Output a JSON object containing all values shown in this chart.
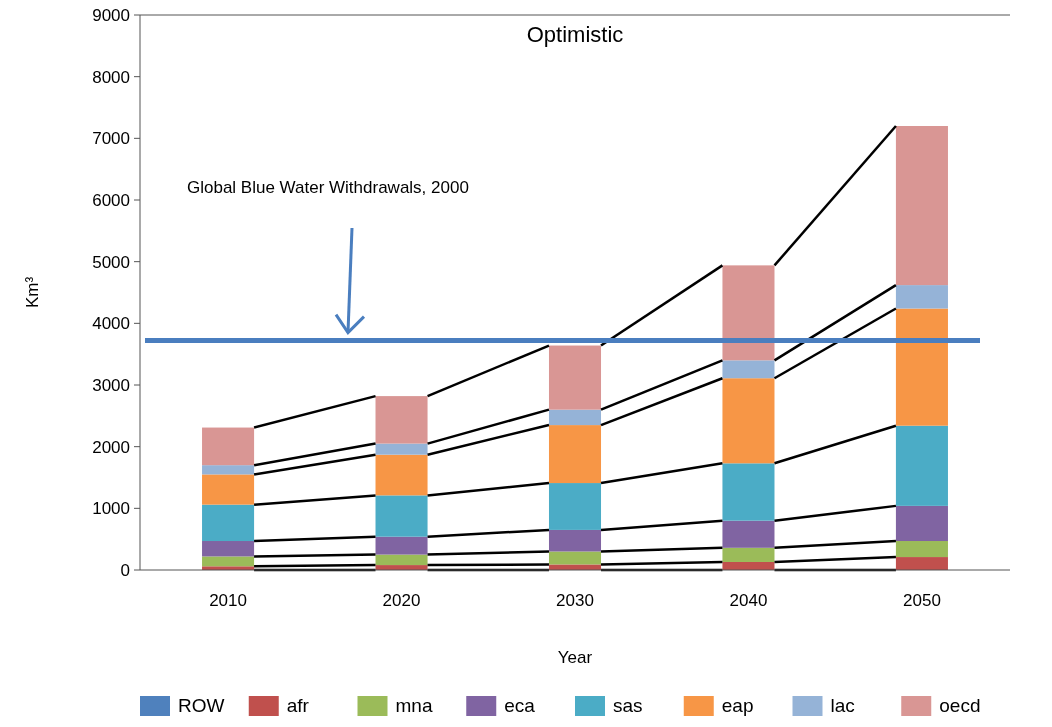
{
  "chart_data": {
    "type": "bar",
    "title": "Optimistic",
    "xlabel": "Year",
    "ylabel": "Km³",
    "categories": [
      "2010",
      "2020",
      "2030",
      "2040",
      "2050"
    ],
    "stacked": true,
    "ylim": [
      0,
      9000
    ],
    "yticks": [
      0,
      1000,
      2000,
      3000,
      4000,
      5000,
      6000,
      7000,
      8000,
      9000
    ],
    "grid": false,
    "legend": "bottom",
    "series": [
      {
        "name": "ROW",
        "color": "#4f81bd",
        "values": [
          null,
          null,
          null,
          null,
          null
        ]
      },
      {
        "name": "afr",
        "color": "#c0504d",
        "values": [
          60,
          80,
          90,
          130,
          210
        ]
      },
      {
        "name": "mna",
        "color": "#9bbb59",
        "values": [
          160,
          170,
          210,
          230,
          260
        ]
      },
      {
        "name": "eca",
        "color": "#8064a2",
        "values": [
          250,
          290,
          350,
          440,
          570
        ]
      },
      {
        "name": "sas",
        "color": "#4bacc6",
        "values": [
          590,
          670,
          760,
          930,
          1300
        ]
      },
      {
        "name": "eap",
        "color": "#f79646",
        "values": [
          490,
          660,
          940,
          1380,
          1900
        ]
      },
      {
        "name": "lac",
        "color": "#95b3d7",
        "values": [
          150,
          180,
          250,
          290,
          380
        ]
      },
      {
        "name": "oecd",
        "color": "#d99694",
        "values": [
          610,
          770,
          1040,
          1540,
          2580
        ]
      }
    ],
    "ref_lines": [
      {
        "axis": "y",
        "value": 3720,
        "color": "#4a7ebf"
      }
    ],
    "annotations": [
      "Global Blue Water Withdrawals, 2000"
    ]
  }
}
